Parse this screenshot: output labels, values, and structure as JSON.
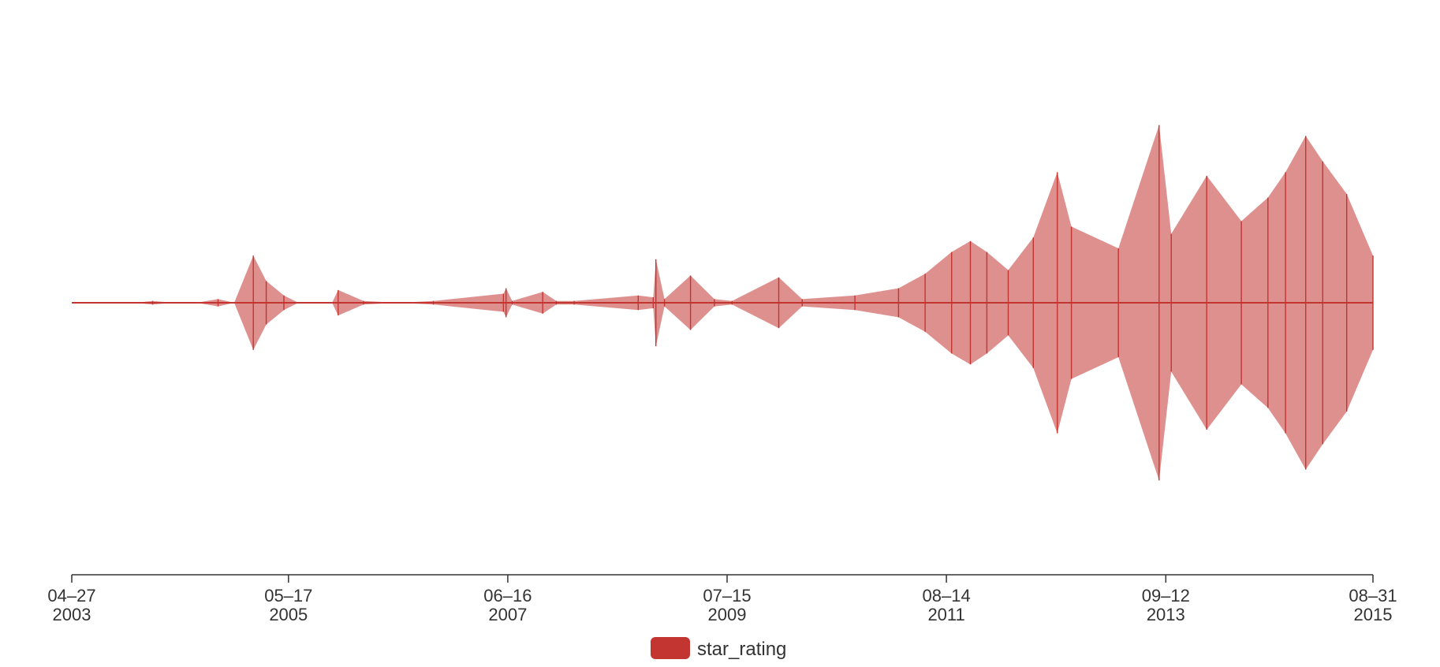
{
  "chart_data": {
    "type": "area",
    "subtype": "symmetric stream (themeRiver-style) time series",
    "x_axis": {
      "type": "time",
      "range": [
        "2003-04-27",
        "2015-08-31"
      ],
      "ticks": [
        {
          "line1": "04–27",
          "line2": "2003",
          "date": "2003-04-27"
        },
        {
          "line1": "05–17",
          "line2": "2005",
          "date": "2005-05-17"
        },
        {
          "line1": "06–16",
          "line2": "2007",
          "date": "2007-06-16"
        },
        {
          "line1": "07–15",
          "line2": "2009",
          "date": "2009-07-15"
        },
        {
          "line1": "08–14",
          "line2": "2011",
          "date": "2011-08-14"
        },
        {
          "line1": "09–12",
          "line2": "2013",
          "date": "2013-09-12"
        },
        {
          "line1": "08–31",
          "line2": "2015",
          "date": "2015-08-31"
        }
      ]
    },
    "y_axis": {
      "shown": false,
      "range": [
        -100,
        100
      ]
    },
    "grid": false,
    "legend": {
      "position": "bottom-center",
      "items": [
        {
          "label": "star_rating",
          "color": "#c23531"
        }
      ]
    },
    "series": [
      {
        "name": "star_rating",
        "color": "#c23531",
        "points": [
          [
            "2003-04-27",
            0
          ],
          [
            "2003-12-01",
            0
          ],
          [
            "2004-02-01",
            1
          ],
          [
            "2004-04-15",
            0
          ],
          [
            "2004-07-01",
            0
          ],
          [
            "2004-09-15",
            2
          ],
          [
            "2004-11-10",
            0
          ],
          [
            "2005-01-15",
            26
          ],
          [
            "2005-03-01",
            12
          ],
          [
            "2005-05-01",
            4
          ],
          [
            "2005-06-20",
            0
          ],
          [
            "2005-10-15",
            0
          ],
          [
            "2005-11-05",
            7
          ],
          [
            "2006-02-01",
            1
          ],
          [
            "2006-06-01",
            0
          ],
          [
            "2006-10-01",
            1
          ],
          [
            "2007-06-01",
            5
          ],
          [
            "2007-06-10",
            8
          ],
          [
            "2007-07-01",
            1
          ],
          [
            "2007-10-15",
            6
          ],
          [
            "2007-12-01",
            1
          ],
          [
            "2008-02-01",
            1
          ],
          [
            "2008-09-10",
            4
          ],
          [
            "2008-11-01",
            3
          ],
          [
            "2008-11-10",
            24
          ],
          [
            "2008-12-10",
            2
          ],
          [
            "2009-03-10",
            15
          ],
          [
            "2009-06-01",
            2
          ],
          [
            "2009-08-01",
            1
          ],
          [
            "2010-01-10",
            14
          ],
          [
            "2010-04-01",
            2
          ],
          [
            "2010-10-01",
            4
          ],
          [
            "2011-03-01",
            8
          ],
          [
            "2011-06-01",
            16
          ],
          [
            "2011-09-01",
            28
          ],
          [
            "2011-11-05",
            34
          ],
          [
            "2012-01-01",
            28
          ],
          [
            "2012-03-15",
            18
          ],
          [
            "2012-06-10",
            36
          ],
          [
            "2012-09-01",
            72
          ],
          [
            "2012-10-20",
            42
          ],
          [
            "2013-04-01",
            30
          ],
          [
            "2013-08-20",
            98
          ],
          [
            "2013-10-01",
            38
          ],
          [
            "2014-02-01",
            70
          ],
          [
            "2014-06-01",
            45
          ],
          [
            "2014-09-01",
            58
          ],
          [
            "2014-11-01",
            72
          ],
          [
            "2015-01-10",
            92
          ],
          [
            "2015-03-10",
            78
          ],
          [
            "2015-06-01",
            60
          ],
          [
            "2015-08-31",
            26
          ]
        ]
      }
    ]
  }
}
